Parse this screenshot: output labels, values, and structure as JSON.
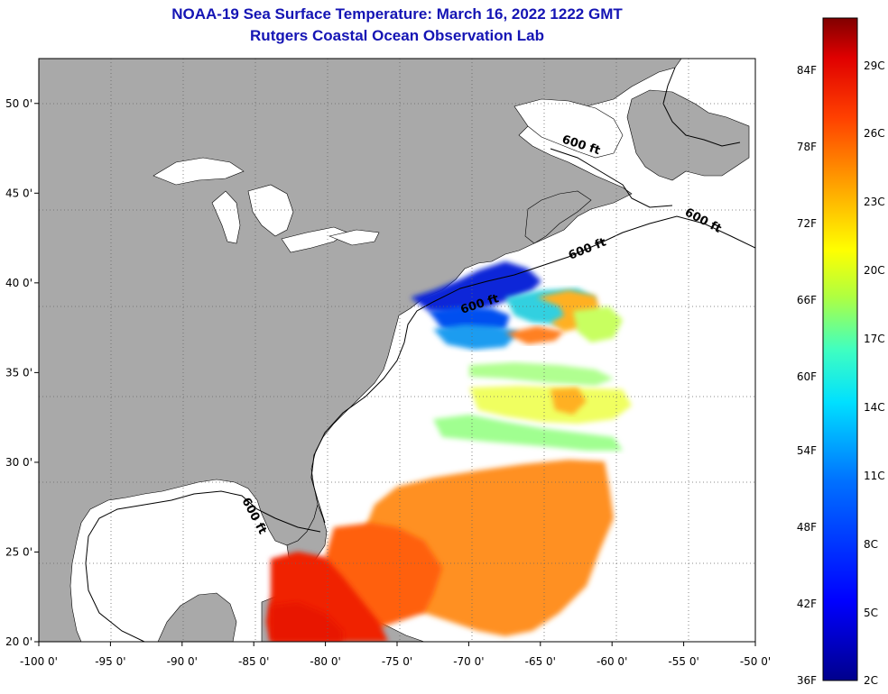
{
  "title": {
    "line1": "NOAA-19 Sea Surface Temperature:  March 16, 2022 1222 GMT",
    "line2": "Rutgers Coastal Ocean Observation Lab"
  },
  "map": {
    "lon_range": [
      -100,
      -50
    ],
    "lat_range": [
      20,
      52.5
    ],
    "lon_ticks": [
      {
        "value": -100,
        "label": "-100 0'"
      },
      {
        "value": -95,
        "label": "-95 0'"
      },
      {
        "value": -90,
        "label": "-90 0'"
      },
      {
        "value": -85,
        "label": "-85 0'"
      },
      {
        "value": -80,
        "label": "-80 0'"
      },
      {
        "value": -75,
        "label": "-75 0'"
      },
      {
        "value": -70,
        "label": "-70 0'"
      },
      {
        "value": -65,
        "label": "-65 0'"
      },
      {
        "value": -60,
        "label": "-60 0'"
      },
      {
        "value": -55,
        "label": "-55 0'"
      },
      {
        "value": -50,
        "label": "-50 0'"
      }
    ],
    "lat_ticks": [
      {
        "value": 50,
        "label": "50 0'"
      },
      {
        "value": 45,
        "label": "45 0'"
      },
      {
        "value": 40,
        "label": "40 0'"
      },
      {
        "value": 35,
        "label": "35 0'"
      },
      {
        "value": 30,
        "label": "30 0'"
      },
      {
        "value": 25,
        "label": "25 0'"
      },
      {
        "value": 20,
        "label": "20 0'"
      }
    ],
    "contour_labels": [
      "600 ft",
      "600 ft",
      "600 ft",
      "600 ft",
      "600 ft"
    ],
    "colors": {
      "land": "#a9a9a9",
      "ocean": "#ffffff",
      "grid": "#555555"
    }
  },
  "colorbar": {
    "fahrenheit_labels": [
      "84F",
      "78F",
      "72F",
      "66F",
      "60F",
      "54F",
      "48F",
      "42F",
      "36F"
    ],
    "celsius_labels": [
      "29C",
      "26C",
      "23C",
      "20C",
      "17C",
      "14C",
      "11C",
      "8C",
      "5C",
      "2C"
    ]
  }
}
